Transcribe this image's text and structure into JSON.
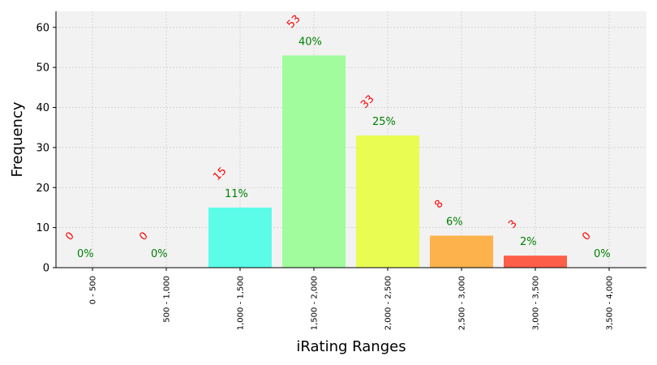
{
  "chart_data": {
    "type": "bar",
    "title": "",
    "xlabel": "iRating Ranges",
    "ylabel": "Frequency",
    "categories": [
      "0 - 500",
      "500 - 1,000",
      "1,000 - 1,500",
      "1,500 - 2,000",
      "2,000 - 2,500",
      "2,500 - 3,000",
      "3,000 - 3,500",
      "3,500 - 4,000"
    ],
    "values": [
      0,
      0,
      15,
      53,
      33,
      8,
      3,
      0
    ],
    "count_labels": [
      "0",
      "0",
      "15",
      "53",
      "33",
      "8",
      "3",
      "0"
    ],
    "percent_labels": [
      "0%",
      "0%",
      "11%",
      "40%",
      "25%",
      "6%",
      "2%",
      "0%"
    ],
    "bar_colors": [
      "#5b3fd6",
      "#3f8fe6",
      "#5bfce8",
      "#a0fc9c",
      "#e8fc52",
      "#fdb24c",
      "#fd5e47",
      "#e32e1e"
    ],
    "ylim": [
      0,
      64
    ],
    "yticks": [
      0,
      10,
      20,
      30,
      40,
      50,
      60
    ],
    "grid": true,
    "legend": "none",
    "colors": {
      "plot_background": "#f2f2f2",
      "grid": "#cccccc",
      "count_label": "#ff0000",
      "percent_label": "#008000"
    }
  }
}
